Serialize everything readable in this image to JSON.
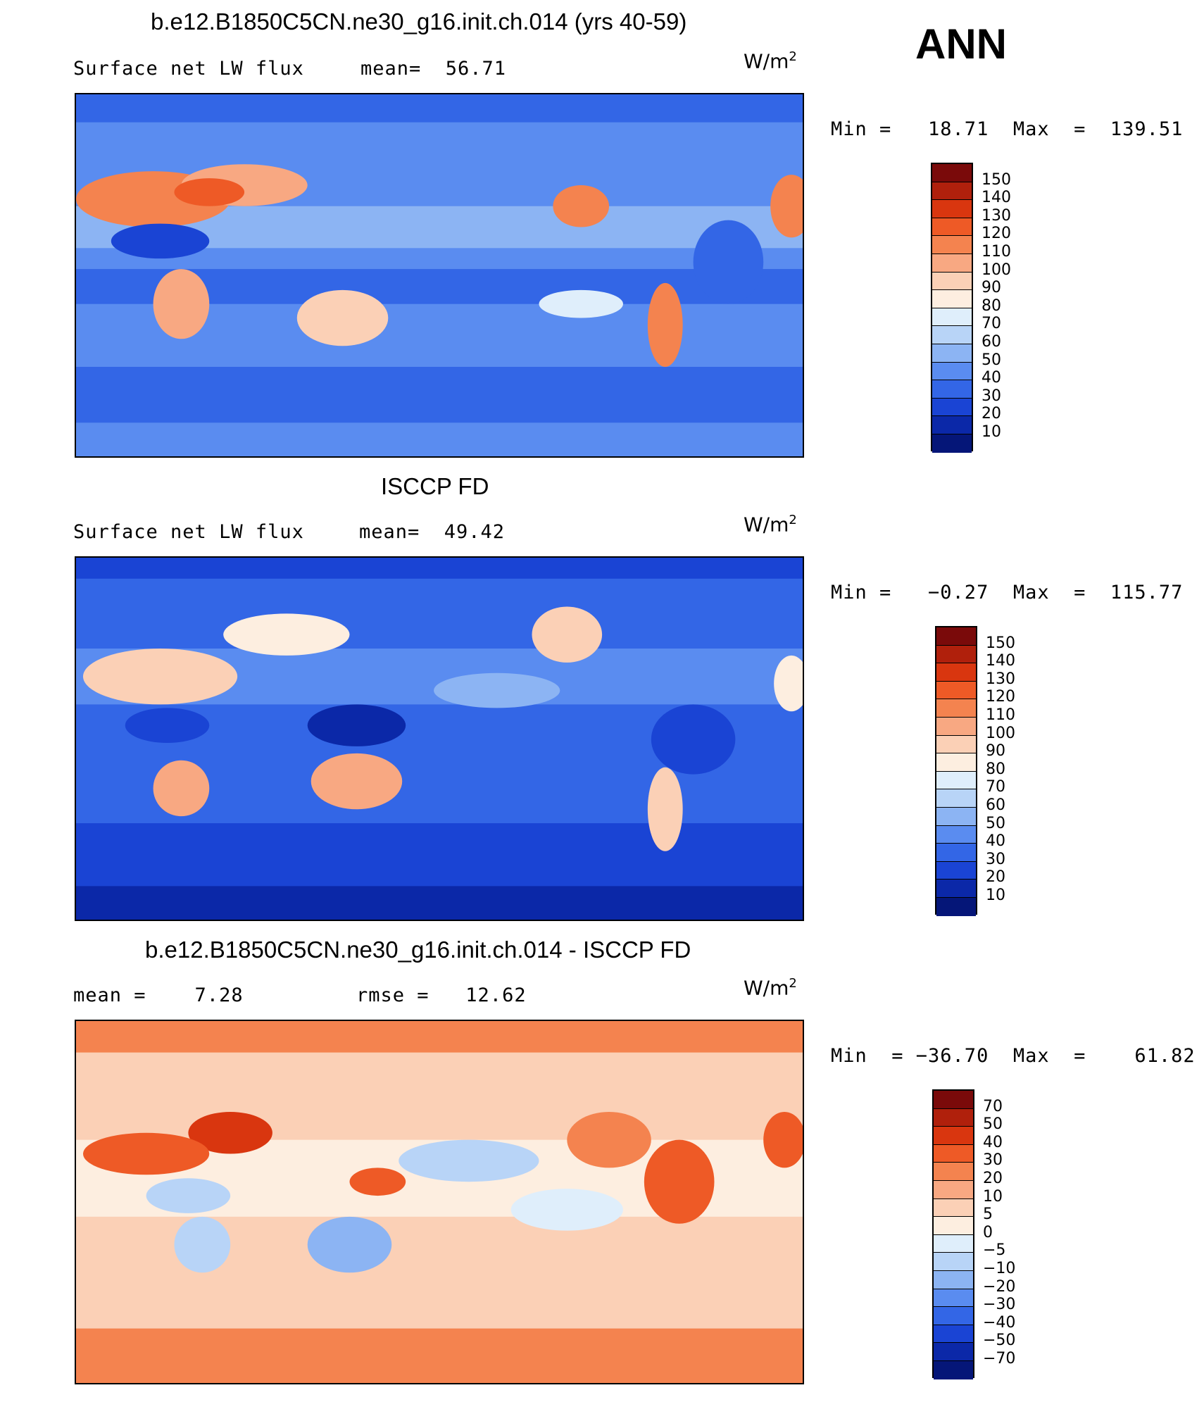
{
  "season": "ANN",
  "panels": [
    {
      "title": "b.e12.B1850C5CN.ne30_g16.init.ch.014 (yrs 40-59)",
      "left_label": "Surface net LW flux",
      "mid_label": "mean=  56.71",
      "units": "W/m",
      "units_sup": "2",
      "minmax": "Min =   18.71  Max  =  139.51",
      "colorbar_labels": [
        "150",
        "140",
        "130",
        "120",
        "110",
        "100",
        "90",
        "80",
        "70",
        "60",
        "50",
        "40",
        "30",
        "20",
        "10"
      ]
    },
    {
      "title": "ISCCP FD",
      "left_label": "Surface net LW flux",
      "mid_label": "mean=  49.42",
      "units": "W/m",
      "units_sup": "2",
      "minmax": "Min =   −0.27  Max  =  115.77",
      "colorbar_labels": [
        "150",
        "140",
        "130",
        "120",
        "110",
        "100",
        "90",
        "80",
        "70",
        "60",
        "50",
        "40",
        "30",
        "20",
        "10"
      ]
    },
    {
      "title": "b.e12.B1850C5CN.ne30_g16.init.ch.014 - ISCCP FD",
      "left_label": "mean =    7.28",
      "mid_label": "rmse =   12.62",
      "units": "W/m",
      "units_sup": "2",
      "minmax": "Min  = −36.70  Max  =    61.82",
      "colorbar_labels": [
        "70",
        "50",
        "40",
        "30",
        "20",
        "10",
        "5",
        "0",
        "−5",
        "−10",
        "−20",
        "−30",
        "−40",
        "−50",
        "−70"
      ]
    }
  ],
  "colors": {
    "abs_scale": [
      "#7a0a0a",
      "#b0200c",
      "#d9360f",
      "#ee5a26",
      "#f4834f",
      "#f8a882",
      "#fbd0b6",
      "#fdeee0",
      "#dfeefb",
      "#b8d4f7",
      "#8cb4f3",
      "#5a8cf0",
      "#3366e6",
      "#1a44d4",
      "#0b28a8",
      "#051678"
    ],
    "diff_scale": [
      "#7a0a0a",
      "#b0200c",
      "#d9360f",
      "#ee5a26",
      "#f4834f",
      "#f8a882",
      "#fbd0b6",
      "#fdeee0",
      "#dfeefb",
      "#b8d4f7",
      "#8cb4f3",
      "#5a8cf0",
      "#3366e6",
      "#1a44d4",
      "#0b28a8",
      "#051678"
    ]
  }
}
